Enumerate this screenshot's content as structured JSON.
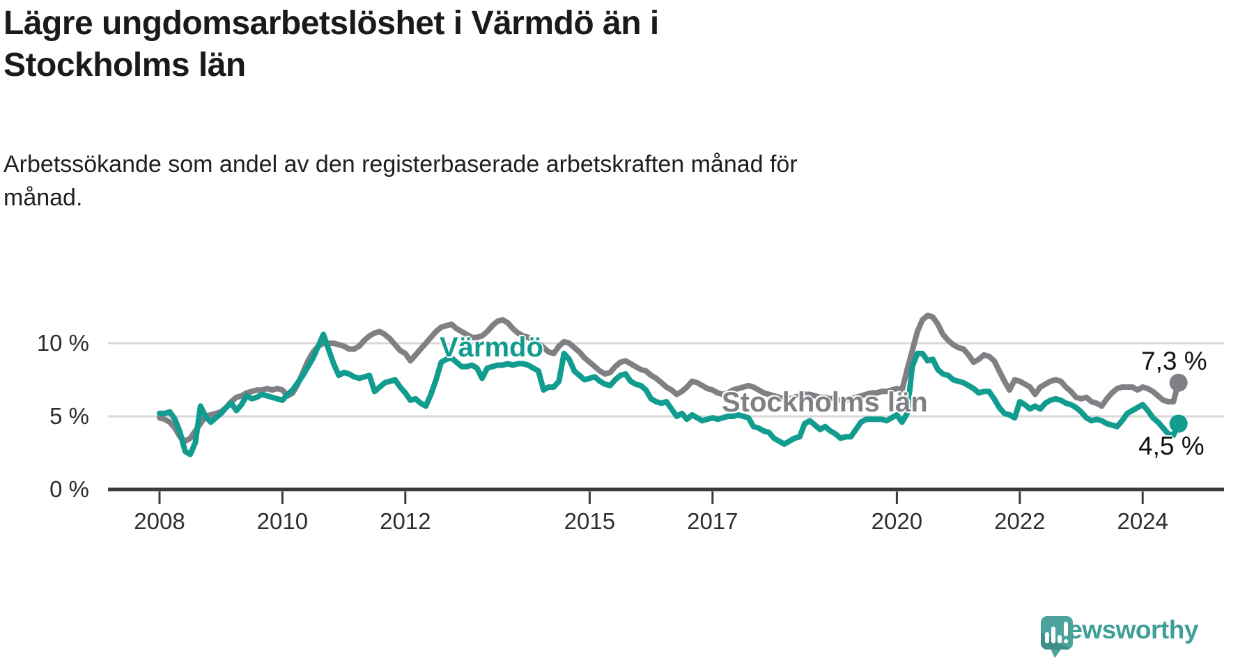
{
  "title": {
    "line1": "Lägre ungdomsarbetslöshet i Värmdö än i",
    "line2": "Stockholms län"
  },
  "subtitle": {
    "line1": "Arbetssökande som andel av den registerbaserade arbetskraften månad för",
    "line2": "månad."
  },
  "chart_data": {
    "type": "line",
    "frequency": "monthly",
    "x_start": "2008-01",
    "x_end": "2024-08",
    "unit": "%",
    "grid": "horizontal",
    "x_ticks": [
      2008,
      2010,
      2012,
      2015,
      2017,
      2020,
      2022,
      2024
    ],
    "y_ticks": [
      {
        "value": 0,
        "label": "0 %"
      },
      {
        "value": 5,
        "label": "5 %"
      },
      {
        "value": 10,
        "label": "10 %"
      }
    ],
    "ylim": [
      0,
      12.5
    ],
    "colors": {
      "grid": "#d9d9d9",
      "axis": "#3a3a3a"
    },
    "series": [
      {
        "name": "Stockholms län",
        "color": "#807f83",
        "end_value": 7.3,
        "end_label": "7,3 %",
        "values": [
          4.9,
          4.8,
          4.6,
          4.2,
          3.6,
          3.3,
          3.5,
          4.0,
          4.5,
          5.0,
          5.1,
          5.2,
          5.3,
          5.6,
          6.0,
          6.3,
          6.4,
          6.6,
          6.7,
          6.8,
          6.8,
          6.9,
          6.8,
          6.9,
          6.8,
          6.4,
          6.6,
          7.2,
          8.0,
          8.8,
          9.4,
          9.8,
          10.0,
          10.0,
          10.0,
          9.9,
          9.8,
          9.6,
          9.6,
          9.8,
          10.2,
          10.5,
          10.7,
          10.8,
          10.6,
          10.3,
          9.9,
          9.5,
          9.3,
          8.8,
          9.2,
          9.6,
          10.0,
          10.4,
          10.8,
          11.1,
          11.2,
          11.3,
          11.0,
          10.8,
          10.6,
          10.4,
          10.4,
          10.5,
          10.8,
          11.2,
          11.5,
          11.6,
          11.4,
          11.0,
          10.7,
          10.5,
          10.4,
          10.2,
          10.0,
          9.7,
          9.4,
          9.3,
          9.8,
          10.1,
          10.0,
          9.7,
          9.4,
          9.0,
          8.7,
          8.4,
          8.1,
          7.9,
          8.0,
          8.4,
          8.7,
          8.8,
          8.6,
          8.4,
          8.2,
          8.1,
          7.8,
          7.6,
          7.3,
          7.0,
          6.8,
          6.5,
          6.7,
          7.0,
          7.4,
          7.3,
          7.1,
          6.9,
          6.8,
          6.6,
          6.5,
          6.6,
          6.8,
          6.9,
          7.0,
          7.1,
          7.0,
          6.8,
          6.6,
          6.5,
          6.4,
          6.3,
          6.2,
          6.2,
          6.3,
          6.4,
          6.5,
          6.5,
          6.4,
          6.3,
          6.3,
          6.2,
          6.2,
          6.1,
          6.1,
          6.2,
          6.3,
          6.4,
          6.5,
          6.6,
          6.6,
          6.7,
          6.7,
          6.8,
          6.9,
          6.8,
          8.2,
          9.5,
          10.8,
          11.6,
          11.9,
          11.8,
          11.3,
          10.6,
          10.2,
          9.9,
          9.7,
          9.6,
          9.2,
          8.7,
          8.9,
          9.2,
          9.1,
          8.8,
          8.1,
          7.4,
          6.8,
          7.5,
          7.4,
          7.2,
          7.0,
          6.5,
          7.0,
          7.2,
          7.4,
          7.5,
          7.4,
          7.0,
          6.7,
          6.3,
          6.2,
          6.3,
          6.0,
          5.9,
          5.7,
          6.2,
          6.6,
          6.9,
          7.0,
          7.0,
          7.0,
          6.8,
          7.0,
          6.9,
          6.7,
          6.4,
          6.1,
          6.0,
          6.0,
          7.3
        ]
      },
      {
        "name": "Värmdö",
        "color": "#129c8f",
        "end_value": 4.5,
        "end_label": "4,5 %",
        "values": [
          5.2,
          5.2,
          5.3,
          4.8,
          3.9,
          2.6,
          2.4,
          3.2,
          5.7,
          5.0,
          4.6,
          4.9,
          5.2,
          5.6,
          5.9,
          5.4,
          5.8,
          6.4,
          6.2,
          6.3,
          6.5,
          6.4,
          6.3,
          6.2,
          6.1,
          6.5,
          6.8,
          7.3,
          7.8,
          8.4,
          9.0,
          9.8,
          10.6,
          9.6,
          8.6,
          7.8,
          8.0,
          7.9,
          7.7,
          7.6,
          7.7,
          7.8,
          6.7,
          7.0,
          7.3,
          7.4,
          7.5,
          7.0,
          6.6,
          6.1,
          6.2,
          5.9,
          5.7,
          6.5,
          7.5,
          8.7,
          8.9,
          9.0,
          8.7,
          8.4,
          8.4,
          8.5,
          8.3,
          7.6,
          8.3,
          8.4,
          8.5,
          8.5,
          8.6,
          8.5,
          8.6,
          8.6,
          8.5,
          8.3,
          8.1,
          6.8,
          7.0,
          7.0,
          7.4,
          9.3,
          8.9,
          8.1,
          7.8,
          7.5,
          7.6,
          7.7,
          7.4,
          7.2,
          7.1,
          7.5,
          7.8,
          7.9,
          7.4,
          7.2,
          7.1,
          6.8,
          6.2,
          6.0,
          5.9,
          6.0,
          5.5,
          5.0,
          5.2,
          4.8,
          5.1,
          4.9,
          4.7,
          4.8,
          4.9,
          4.8,
          4.9,
          5.0,
          5.0,
          5.1,
          5.0,
          4.9,
          4.3,
          4.2,
          4.0,
          3.9,
          3.5,
          3.3,
          3.1,
          3.3,
          3.5,
          3.6,
          4.5,
          4.7,
          4.4,
          4.1,
          4.3,
          4.0,
          3.8,
          3.5,
          3.6,
          3.6,
          4.1,
          4.6,
          4.8,
          4.8,
          4.8,
          4.8,
          4.7,
          4.9,
          5.1,
          4.6,
          5.2,
          8.4,
          9.3,
          9.3,
          8.8,
          8.9,
          8.2,
          7.9,
          7.8,
          7.5,
          7.4,
          7.3,
          7.1,
          6.9,
          6.6,
          6.7,
          6.7,
          6.2,
          5.6,
          5.2,
          5.1,
          4.9,
          6.0,
          5.8,
          5.5,
          5.7,
          5.5,
          5.9,
          6.1,
          6.2,
          6.1,
          5.9,
          5.8,
          5.6,
          5.3,
          4.9,
          4.7,
          4.8,
          4.7,
          4.5,
          4.4,
          4.3,
          4.7,
          5.2,
          5.4,
          5.6,
          5.8,
          5.4,
          4.9,
          4.6,
          4.2,
          3.8,
          3.7,
          4.5
        ]
      }
    ]
  },
  "logo": {
    "text": "Newsworthy",
    "color": "#3f9e97",
    "icon_color": "#4ca39d",
    "icon_fold_color": "#3e8e88"
  }
}
